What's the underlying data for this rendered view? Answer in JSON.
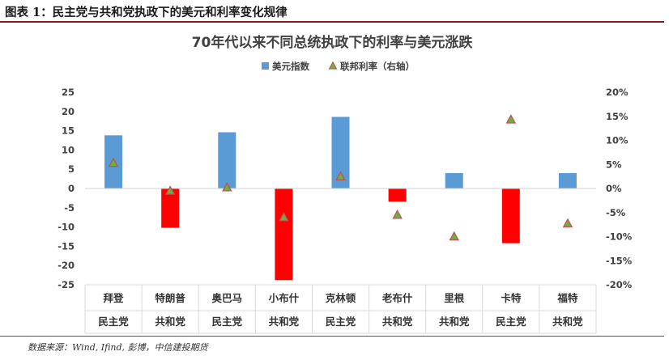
{
  "figure": {
    "caption": "图表 1：民主党与共和党执政下的美元和利率变化规律",
    "source": "数据来源：Wind, Ifind, 彭博，中信建投期货"
  },
  "colors": {
    "bar_positive": "#5b9bd5",
    "bar_negative": "#ff0000",
    "marker_fill": "#70ad47",
    "marker_stroke": "#c0504d",
    "rule": "#7b1c24"
  },
  "chart_data": {
    "type": "bar",
    "title": "70年代以来不同总统执政下的利率与美元涨跌",
    "legend": {
      "position": "top-center",
      "entries": [
        "美元指数",
        "联邦利率（右轴）"
      ]
    },
    "categories": [
      "拜登",
      "特朗普",
      "奥巴马",
      "小布什",
      "克林顿",
      "老布什",
      "里根",
      "卡特",
      "福特"
    ],
    "parties": [
      "民主党",
      "共和党",
      "民主党",
      "共和党",
      "民主党",
      "共和党",
      "共和党",
      "民主党",
      "共和党"
    ],
    "series": [
      {
        "name": "美元指数",
        "axis": "left",
        "kind": "bar",
        "values": [
          13.8,
          -10.2,
          14.6,
          -23.8,
          18.6,
          -3.4,
          4.0,
          -14.2,
          4.0
        ]
      },
      {
        "name": "联邦利率（右轴）",
        "axis": "right",
        "kind": "marker",
        "unit": "%",
        "values": [
          5.3,
          -0.5,
          0.2,
          -6.0,
          2.5,
          -5.5,
          -10.0,
          14.3,
          -7.3
        ]
      }
    ],
    "y_left": {
      "min": -25,
      "max": 25,
      "step": 5,
      "ticks": [
        "25",
        "20",
        "15",
        "10",
        "5",
        "0",
        "-5",
        "-10",
        "-15",
        "-20",
        "-25"
      ]
    },
    "y_right": {
      "min": -20,
      "max": 20,
      "step": 5,
      "ticks": [
        "20%",
        "15%",
        "10%",
        "5%",
        "0%",
        "-5%",
        "-10%",
        "-15%",
        "-20%"
      ]
    },
    "grid": false
  }
}
